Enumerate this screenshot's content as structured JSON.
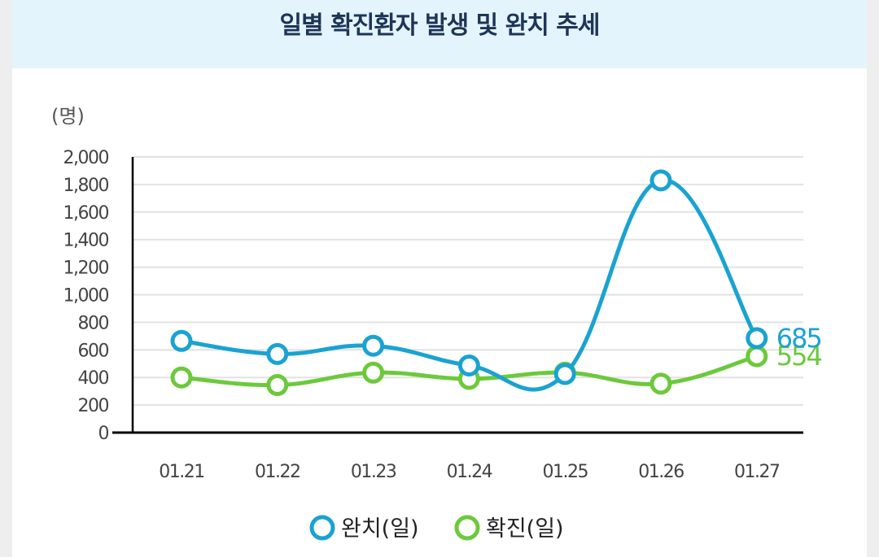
{
  "chart_data": {
    "type": "line",
    "title": "일별 확진환자 발생 및 완치 추세",
    "ylabel": "(명)",
    "xlabel": "",
    "ylim": [
      0,
      2000
    ],
    "yticks": [
      0,
      200,
      400,
      600,
      800,
      1000,
      1200,
      1400,
      1600,
      1800,
      2000
    ],
    "ytick_labels": [
      "0",
      "200",
      "400",
      "600",
      "800",
      "1,000",
      "1,200",
      "1,400",
      "1,600",
      "1,800",
      "2,000"
    ],
    "categories": [
      "01.21",
      "01.22",
      "01.23",
      "01.24",
      "01.25",
      "01.26",
      "01.27"
    ],
    "grid": true,
    "legend_position": "bottom",
    "series": [
      {
        "name": "완치(일)",
        "color": "#1aa3d1",
        "values": [
          665,
          570,
          630,
          487,
          425,
          1830,
          685
        ],
        "end_label": "685"
      },
      {
        "name": "확진(일)",
        "color": "#6cc93c",
        "values": [
          400,
          345,
          435,
          390,
          435,
          355,
          554
        ],
        "end_label": "554"
      }
    ]
  }
}
